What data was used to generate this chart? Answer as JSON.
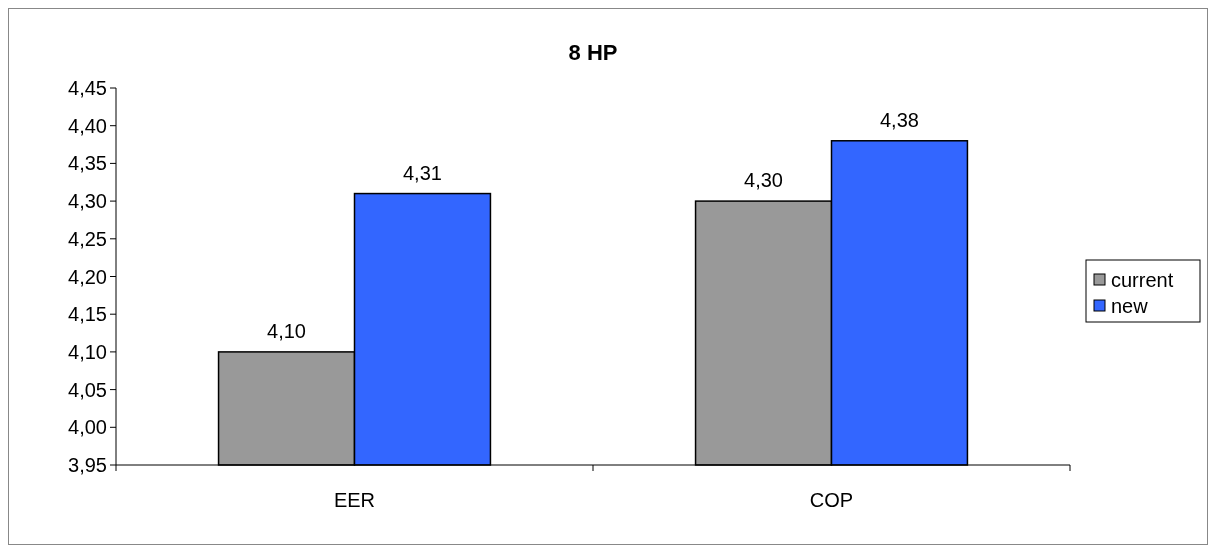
{
  "chart_data": {
    "type": "bar",
    "title": "8 HP",
    "categories": [
      "EER",
      "COP"
    ],
    "series": [
      {
        "name": "current",
        "color": "#999999",
        "values": [
          4.1,
          4.3
        ],
        "value_labels": [
          "4,10",
          "4,30"
        ]
      },
      {
        "name": "new",
        "color": "#3366ff",
        "values": [
          4.31,
          4.38
        ],
        "value_labels": [
          "4,31",
          "4,38"
        ]
      }
    ],
    "ylim": [
      3.95,
      4.45
    ],
    "yticks": [
      {
        "value": 3.95,
        "label": "3,95"
      },
      {
        "value": 4.0,
        "label": "4,00"
      },
      {
        "value": 4.05,
        "label": "4,05"
      },
      {
        "value": 4.1,
        "label": "4,10"
      },
      {
        "value": 4.15,
        "label": "4,15"
      },
      {
        "value": 4.2,
        "label": "4,20"
      },
      {
        "value": 4.25,
        "label": "4,25"
      },
      {
        "value": 4.3,
        "label": "4,30"
      },
      {
        "value": 4.35,
        "label": "4,35"
      },
      {
        "value": 4.4,
        "label": "4,40"
      },
      {
        "value": 4.45,
        "label": "4,45"
      }
    ],
    "grid": false,
    "legend": "right"
  }
}
